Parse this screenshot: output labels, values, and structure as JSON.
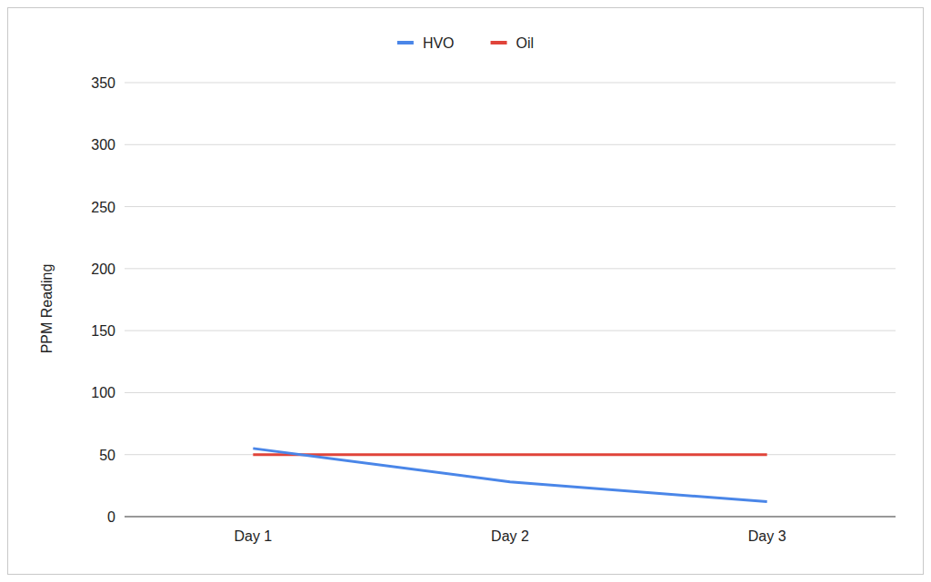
{
  "chart_data": {
    "type": "line",
    "categories": [
      "Day 1",
      "Day 2",
      "Day 3"
    ],
    "series": [
      {
        "name": "HVO",
        "color": "#4a86e8",
        "values": [
          55,
          28,
          12
        ]
      },
      {
        "name": "Oil",
        "color": "#e0443a",
        "values": [
          50,
          50,
          50
        ]
      }
    ],
    "y_label": "PPM Reading",
    "ylim": [
      0,
      350
    ],
    "yticks": [
      0,
      50,
      100,
      150,
      200,
      250,
      300,
      350
    ],
    "grid": true,
    "legend": "top"
  }
}
